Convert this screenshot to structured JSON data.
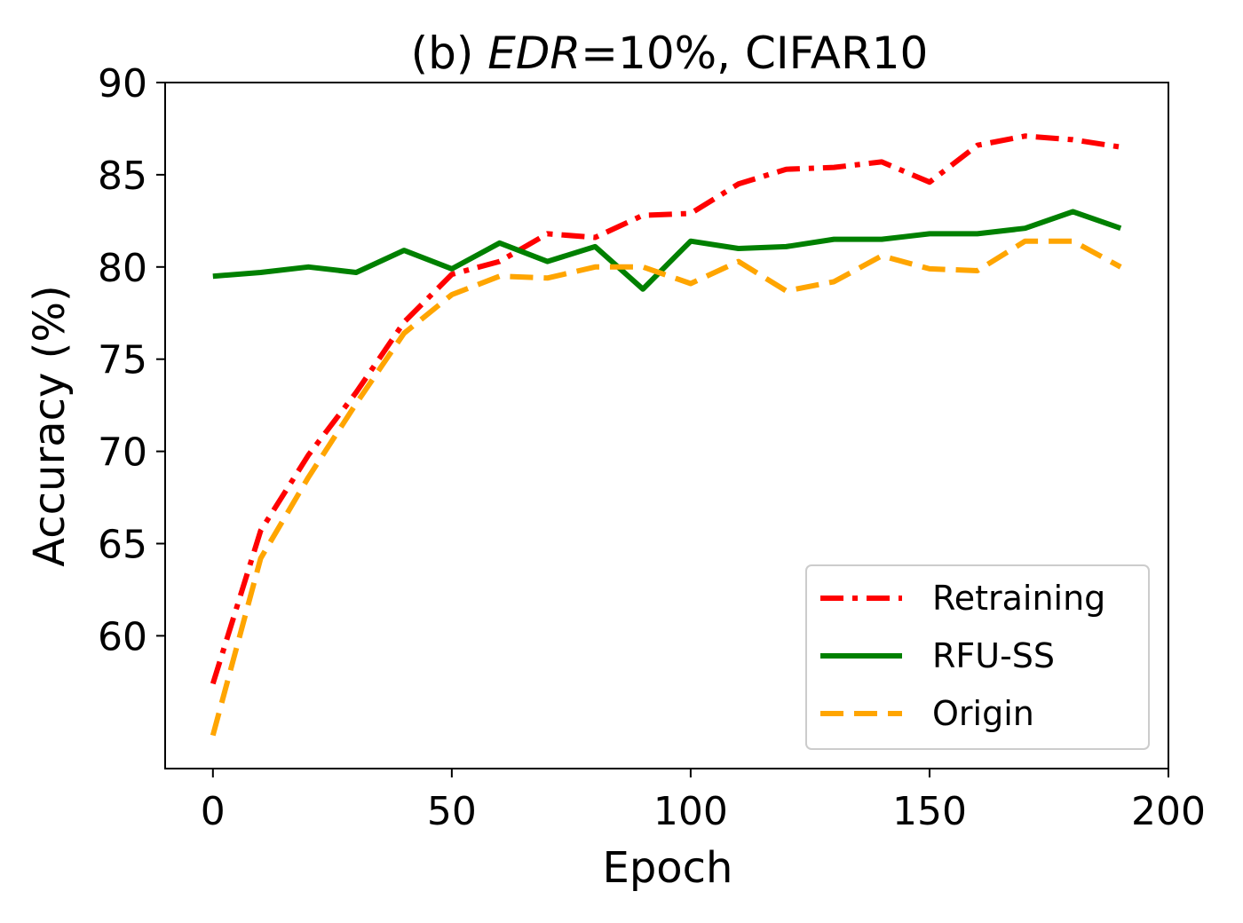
{
  "chart_data": {
    "type": "line",
    "title_prefix": "(b) ",
    "title_italic": "EDR",
    "title_suffix": "=10%, CIFAR10",
    "xlabel": "Epoch",
    "ylabel": "Accuracy (%)",
    "xlim": [
      -10,
      200
    ],
    "ylim": [
      52.8,
      90
    ],
    "xticks": [
      0,
      50,
      100,
      150,
      200
    ],
    "yticks": [
      60,
      65,
      70,
      75,
      80,
      85,
      90
    ],
    "grid": false,
    "legend_position": "lower-right",
    "x": [
      0,
      10,
      20,
      30,
      40,
      50,
      60,
      70,
      80,
      90,
      100,
      110,
      120,
      130,
      140,
      150,
      160,
      170,
      180,
      190
    ],
    "series": [
      {
        "name": "Retraining",
        "color": "#ff0000",
        "style": "dashdot",
        "values": [
          57.4,
          65.7,
          69.8,
          73.2,
          77.0,
          79.6,
          80.3,
          81.8,
          81.6,
          82.8,
          82.9,
          84.5,
          85.3,
          85.4,
          85.7,
          84.6,
          86.6,
          87.1,
          86.9,
          86.5
        ]
      },
      {
        "name": "RFU-SS",
        "color": "#008000",
        "style": "solid",
        "values": [
          79.5,
          79.7,
          80.0,
          79.7,
          80.9,
          79.9,
          81.3,
          80.3,
          81.1,
          78.8,
          81.4,
          81.0,
          81.1,
          81.5,
          81.5,
          81.8,
          81.8,
          82.1,
          83.0,
          82.1
        ]
      },
      {
        "name": "Origin",
        "color": "#ffa500",
        "style": "dashed",
        "values": [
          54.6,
          64.2,
          68.6,
          72.6,
          76.4,
          78.5,
          79.5,
          79.4,
          80.0,
          80.0,
          79.1,
          80.3,
          78.7,
          79.2,
          80.6,
          79.9,
          79.8,
          81.4,
          81.4,
          80.0
        ]
      }
    ]
  }
}
